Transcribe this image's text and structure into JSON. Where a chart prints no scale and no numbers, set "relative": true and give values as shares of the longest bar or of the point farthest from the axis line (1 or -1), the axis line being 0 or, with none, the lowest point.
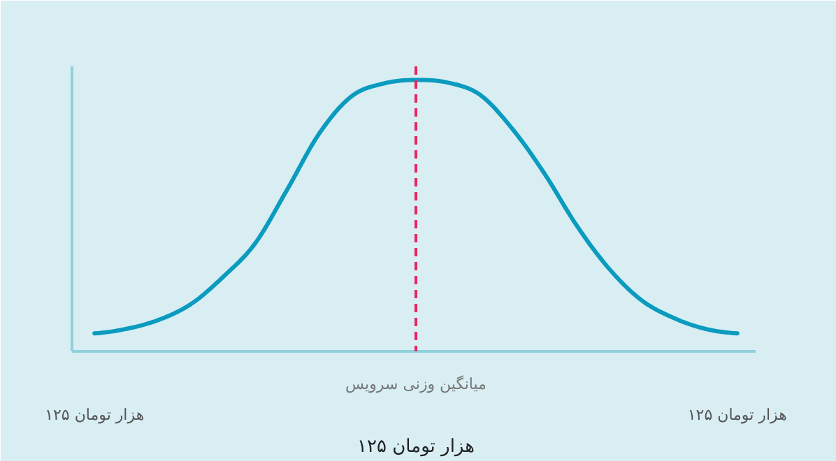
{
  "chart_data": {
    "type": "line",
    "relative": true,
    "categories": [
      "۱۲۵ هزار تومان",
      null,
      null,
      null,
      null,
      null,
      null,
      null,
      null,
      null,
      "میانگین وزنی سرویس",
      null,
      null,
      null,
      null,
      null,
      null,
      null,
      null,
      null,
      "۱۲۵ هزار تومان"
    ],
    "series": [
      {
        "color": "#0a9bbf",
        "values": [
          0.066,
          0.083,
          0.116,
          0.174,
          0.274,
          0.398,
          0.597,
          0.804,
          0.94,
          0.987,
          1,
          0.99,
          0.945,
          0.82,
          0.655,
          0.464,
          0.306,
          0.19,
          0.124,
          0.083,
          0.066
        ]
      }
    ],
    "ref_lines": [
      {
        "axis": "x",
        "value": "میانگین وزنی سرویس",
        "color": "#e8265e",
        "line_style": "dashed"
      }
    ],
    "annotations": [
      "۱۲۵ هزار تومان"
    ],
    "grid": false,
    "marker": "none",
    "line_style": "solid"
  }
}
